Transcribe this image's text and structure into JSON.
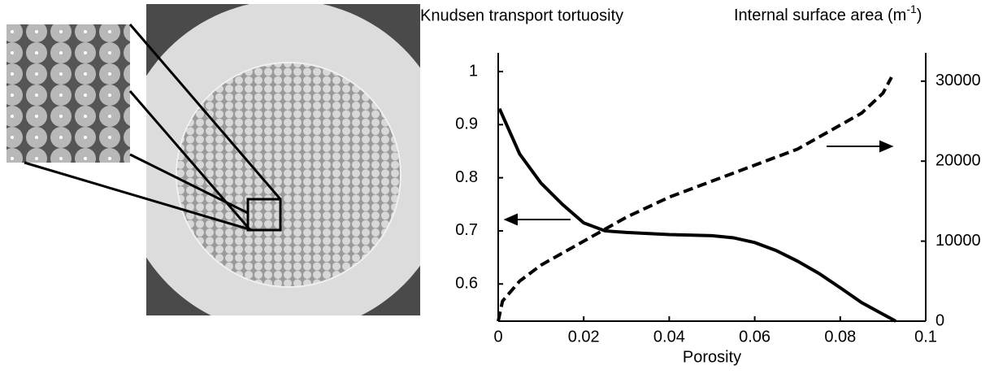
{
  "chart_data": {
    "type": "line",
    "y_label": "Knudsen transport tortuosity",
    "y2_label": "Internal surface area (m",
    "y2_label_sup": "-1",
    "y2_label_end": ")",
    "x_label": "Porosity",
    "xlim": [
      0,
      0.1
    ],
    "xticks": [
      0,
      0.02,
      0.04,
      0.06,
      0.08,
      0.1
    ],
    "ylim": [
      0.53,
      1
    ],
    "yticks": [
      0.6,
      0.7,
      0.8,
      0.9,
      1
    ],
    "y2lim": [
      0,
      31200
    ],
    "y2ticks": [
      0,
      10000,
      20000,
      30000
    ],
    "series": [
      {
        "color": "#000000",
        "dash": false,
        "x": [
          0.0003,
          0.005,
          0.01,
          0.015,
          0.02,
          0.025,
          0.03,
          0.04,
          0.05,
          0.055,
          0.06,
          0.065,
          0.07,
          0.075,
          0.08,
          0.085,
          0.09,
          0.093
        ],
        "values": [
          0.93,
          0.845,
          0.79,
          0.75,
          0.715,
          0.7,
          0.697,
          0.693,
          0.691,
          0.687,
          0.678,
          0.663,
          0.643,
          0.62,
          0.593,
          0.565,
          0.543,
          0.53
        ]
      },
      {
        "color": "#000000",
        "dash": true,
        "axis": "y2",
        "x": [
          0,
          0.001,
          0.005,
          0.01,
          0.02,
          0.03,
          0.04,
          0.05,
          0.06,
          0.07,
          0.08,
          0.085,
          0.09,
          0.092
        ],
        "values": [
          0,
          2500,
          5000,
          7000,
          10000,
          13000,
          15500,
          17500,
          19500,
          21500,
          24500,
          26000,
          28500,
          30500
        ]
      }
    ]
  }
}
